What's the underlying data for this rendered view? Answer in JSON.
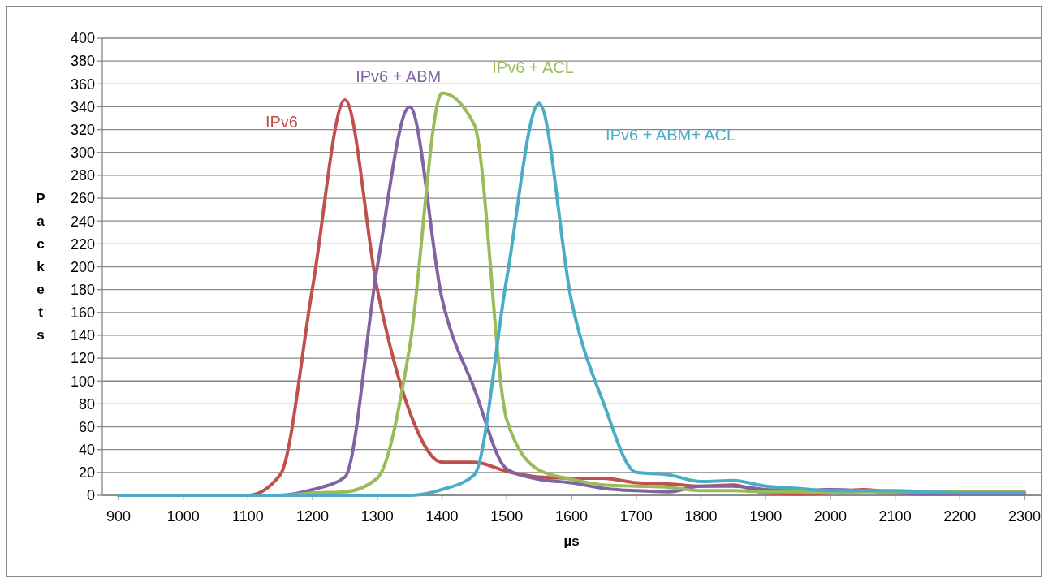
{
  "chart_data": {
    "type": "line",
    "xlabel": "µs",
    "ylabel": "Packets",
    "xlim": [
      875,
      2325
    ],
    "xticks": [
      900,
      1000,
      1100,
      1200,
      1300,
      1400,
      1500,
      1600,
      1700,
      1800,
      1900,
      2000,
      2100,
      2200,
      2300
    ],
    "ylim": [
      0,
      400
    ],
    "yticks": [
      0,
      20,
      40,
      60,
      80,
      100,
      120,
      140,
      160,
      180,
      200,
      220,
      240,
      260,
      280,
      300,
      320,
      340,
      360,
      380,
      400
    ],
    "grid": "y",
    "marker": "none",
    "line_style": "solid",
    "x": [
      900,
      950,
      1000,
      1050,
      1100,
      1150,
      1200,
      1250,
      1300,
      1350,
      1400,
      1450,
      1500,
      1550,
      1600,
      1650,
      1700,
      1750,
      1800,
      1850,
      1900,
      1950,
      2000,
      2050,
      2100,
      2150,
      2200,
      2250,
      2300
    ],
    "series": [
      {
        "name": "IPv6",
        "color": "#c0504d",
        "values": [
          null,
          null,
          null,
          0,
          0,
          18,
          182,
          346,
          180,
          73,
          29,
          29,
          21,
          16,
          15,
          15,
          11,
          10,
          8,
          9,
          2,
          1,
          2,
          5,
          2,
          null,
          null,
          null,
          null
        ]
      },
      {
        "name": "IPv6 + ABM",
        "color": "#8064a2",
        "values": [
          0,
          0,
          0,
          0,
          0,
          0,
          5,
          16,
          200,
          340,
          172,
          93,
          23,
          14,
          11,
          6,
          4,
          3,
          8,
          8,
          5,
          4,
          5,
          4,
          2,
          1,
          1,
          1,
          1
        ]
      },
      {
        "name": "IPv6 + ACL",
        "color": "#9bbb59",
        "values": [
          null,
          null,
          null,
          null,
          0,
          0,
          2,
          3,
          15,
          130,
          352,
          324,
          66,
          22,
          14,
          9,
          8,
          7,
          4,
          4,
          3,
          3,
          2,
          3,
          3,
          3,
          3,
          3,
          3
        ]
      },
      {
        "name": "IPv6 + ABM+ ACL",
        "color": "#4bacc6",
        "values": [
          0,
          0,
          0,
          0,
          0,
          0,
          0,
          0,
          0,
          0,
          5,
          18,
          190,
          343,
          170,
          80,
          20,
          18,
          12,
          13,
          8,
          6,
          4,
          4,
          4,
          3,
          2,
          2,
          2
        ]
      }
    ]
  }
}
